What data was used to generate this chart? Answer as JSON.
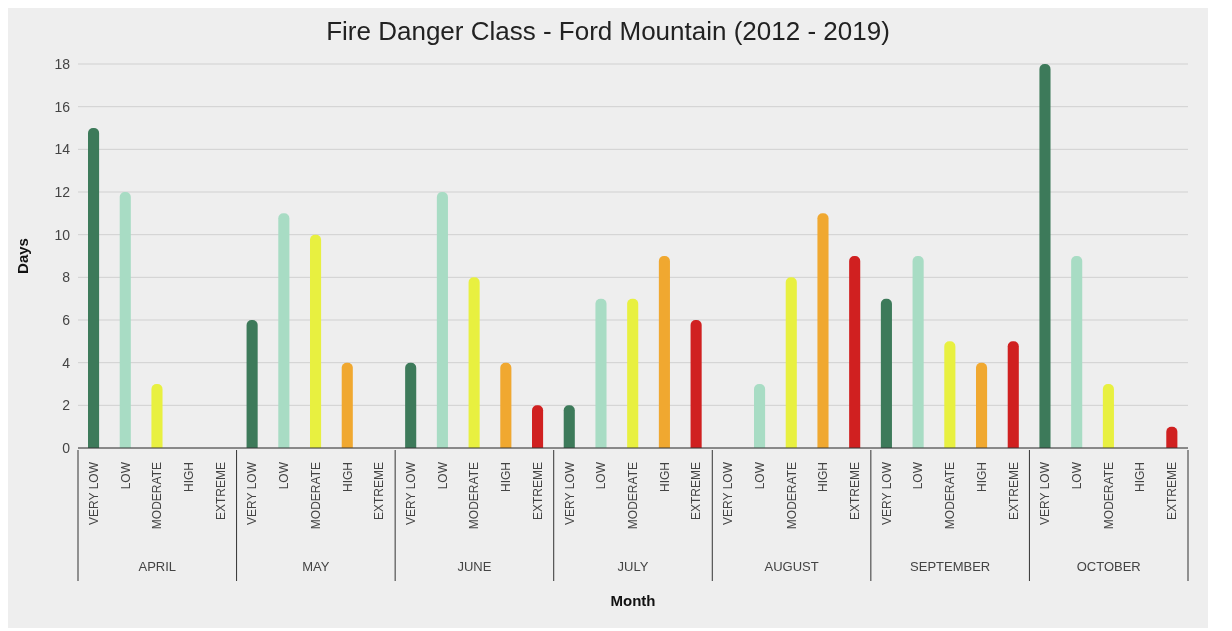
{
  "chart_data": {
    "type": "bar",
    "title": "Fire Danger Class - Ford Mountain (2012 - 2019)",
    "xlabel": "Month",
    "ylabel": "Days",
    "categories": [
      "VERY LOW",
      "LOW",
      "MODERATE",
      "HIGH",
      "EXTREME",
      "VERY LOW",
      "LOW",
      "MODERATE",
      "HIGH",
      "EXTREME",
      "VERY LOW",
      "LOW",
      "MODERATE",
      "HIGH",
      "EXTREME",
      "VERY LOW",
      "LOW",
      "MODERATE",
      "HIGH",
      "EXTREME",
      "VERY LOW",
      "LOW",
      "MODERATE",
      "HIGH",
      "EXTREME",
      "VERY LOW",
      "LOW",
      "MODERATE",
      "HIGH",
      "EXTREME",
      "VERY LOW",
      "LOW",
      "MODERATE",
      "HIGH",
      "EXTREME"
    ],
    "values": [
      15,
      12,
      3,
      0,
      0,
      6,
      11,
      10,
      4,
      0,
      4,
      12,
      8,
      4,
      2,
      2,
      7,
      7,
      9,
      6,
      0,
      3,
      8,
      11,
      9,
      7,
      9,
      5,
      4,
      5,
      18,
      9,
      3,
      0,
      1
    ],
    "colors": [
      "#3d7a5a",
      "#a8dcc4",
      "#e8f040",
      "#f0a830",
      "#d02020",
      "#3d7a5a",
      "#a8dcc4",
      "#e8f040",
      "#f0a830",
      "#d02020",
      "#3d7a5a",
      "#a8dcc4",
      "#e8f040",
      "#f0a830",
      "#d02020",
      "#3d7a5a",
      "#a8dcc4",
      "#e8f040",
      "#f0a830",
      "#d02020",
      "#3d7a5a",
      "#a8dcc4",
      "#e8f040",
      "#f0a830",
      "#d02020",
      "#3d7a5a",
      "#a8dcc4",
      "#e8f040",
      "#f0a830",
      "#d02020",
      "#3d7a5a",
      "#a8dcc4",
      "#e8f040",
      "#f0a830",
      "#d02020"
    ],
    "annotations": [
      "APRIL",
      "MAY",
      "JUNE",
      "JULY",
      "AUGUST",
      "SEPTEMBER",
      "OCTOBER"
    ],
    "ylim": [
      0,
      18
    ],
    "yticks": [
      0,
      2,
      4,
      6,
      8,
      10,
      12,
      14,
      16,
      18
    ],
    "grid": "y"
  }
}
